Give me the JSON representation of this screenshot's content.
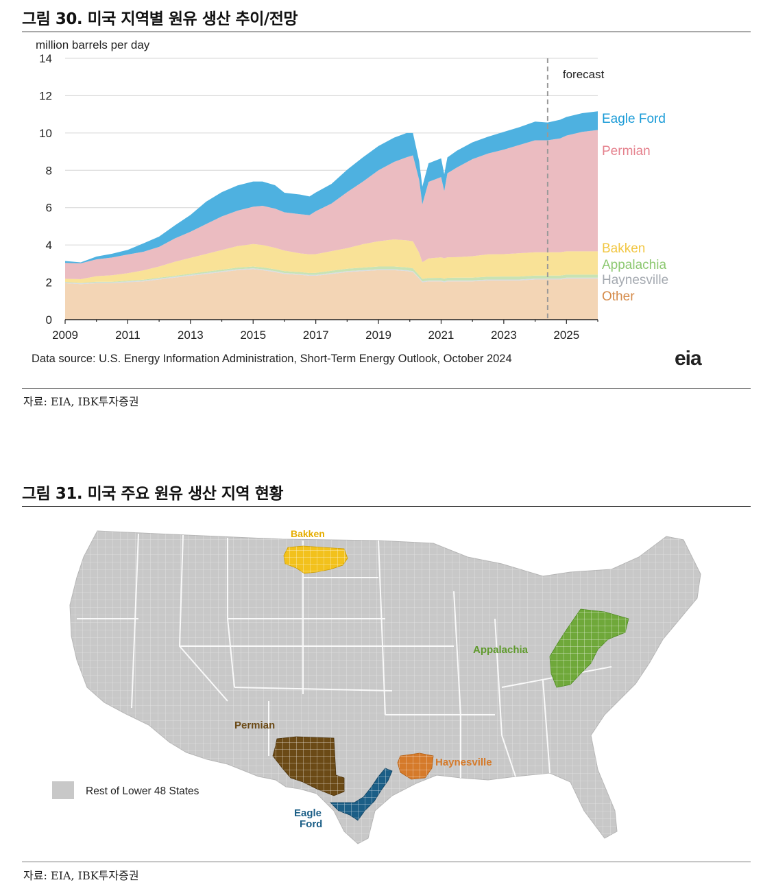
{
  "figure1": {
    "title": "그림 30. 미국 지역별 원유 생산 추이/전망",
    "source": "자료: EIA, IBK투자증권"
  },
  "figure2": {
    "title": "그림 31. 미국 주요 원유 생산 지역 현황",
    "source": "자료: EIA, IBK투자증권",
    "legend_label": "Rest of Lower 48 States",
    "regions": [
      {
        "name": "Bakken",
        "label": "Bakken",
        "color": "#f2c11c"
      },
      {
        "name": "Appalachia",
        "label": "Appalachia",
        "color": "#6fa83a"
      },
      {
        "name": "Permian",
        "label": "Permian",
        "color": "#6b4a16"
      },
      {
        "name": "Haynesville",
        "label": "Haynesville",
        "color": "#d57a2a"
      },
      {
        "name": "Eagle Ford",
        "label": "Eagle\nFord",
        "label_lines": [
          "Eagle",
          "Ford"
        ],
        "color": "#1b5e86"
      }
    ],
    "map_base_color": "#c8c8c8"
  },
  "chart_data": {
    "type": "area",
    "stacked": true,
    "ylabel": "million barrels per day",
    "ylim": [
      0,
      14
    ],
    "yticks": [
      0,
      2,
      4,
      6,
      8,
      10,
      12,
      14
    ],
    "xlim": [
      2009.0,
      2026.0
    ],
    "xticks": [
      "2009",
      "2011",
      "2013",
      "2015",
      "2017",
      "2019",
      "2021",
      "2023",
      "2025"
    ],
    "forecast_start": 2024.4,
    "forecast_label": "forecast",
    "data_source": "Data source: U.S. Energy Information Administration, Short-Term Energy Outlook, October 2024",
    "logo": "eia",
    "grid": true,
    "legend_position": "right",
    "x": [
      2009.0,
      2009.5,
      2010.0,
      2010.5,
      2011.0,
      2011.5,
      2012.0,
      2012.5,
      2013.0,
      2013.5,
      2014.0,
      2014.5,
      2015.0,
      2015.3,
      2015.7,
      2016.0,
      2016.5,
      2016.8,
      2017.0,
      2017.5,
      2018.0,
      2018.5,
      2019.0,
      2019.5,
      2019.9,
      2020.1,
      2020.3,
      2020.4,
      2020.6,
      2021.0,
      2021.1,
      2021.2,
      2021.5,
      2022.0,
      2022.5,
      2023.0,
      2023.5,
      2024.0,
      2024.4,
      2024.8,
      2025.0,
      2025.5,
      2026.0
    ],
    "series": [
      {
        "name": "Other",
        "color": "#f3d5b5",
        "label_color": "#d58b4a",
        "values": [
          1.95,
          1.9,
          1.95,
          1.95,
          2.0,
          2.05,
          2.15,
          2.25,
          2.35,
          2.45,
          2.55,
          2.65,
          2.7,
          2.65,
          2.55,
          2.45,
          2.4,
          2.35,
          2.35,
          2.45,
          2.55,
          2.6,
          2.65,
          2.65,
          2.6,
          2.55,
          2.2,
          2.0,
          2.05,
          2.05,
          2.0,
          2.05,
          2.05,
          2.05,
          2.1,
          2.1,
          2.1,
          2.15,
          2.15,
          2.15,
          2.2,
          2.2,
          2.2
        ]
      },
      {
        "name": "Haynesville",
        "color": "#d8dde2",
        "label_color": "#a4a9b0",
        "values": [
          0.05,
          0.05,
          0.05,
          0.05,
          0.05,
          0.05,
          0.05,
          0.05,
          0.05,
          0.05,
          0.05,
          0.05,
          0.05,
          0.05,
          0.05,
          0.05,
          0.05,
          0.05,
          0.05,
          0.05,
          0.05,
          0.05,
          0.05,
          0.05,
          0.05,
          0.05,
          0.05,
          0.05,
          0.05,
          0.05,
          0.05,
          0.05,
          0.05,
          0.05,
          0.05,
          0.05,
          0.05,
          0.05,
          0.05,
          0.05,
          0.05,
          0.05,
          0.05
        ]
      },
      {
        "name": "Appalachia",
        "color": "#c8e3b4",
        "label_color": "#8cc870",
        "values": [
          0.02,
          0.02,
          0.03,
          0.03,
          0.04,
          0.04,
          0.05,
          0.05,
          0.06,
          0.07,
          0.08,
          0.09,
          0.1,
          0.1,
          0.1,
          0.1,
          0.1,
          0.1,
          0.11,
          0.12,
          0.13,
          0.14,
          0.15,
          0.15,
          0.15,
          0.15,
          0.13,
          0.13,
          0.13,
          0.14,
          0.14,
          0.14,
          0.15,
          0.15,
          0.15,
          0.16,
          0.16,
          0.16,
          0.16,
          0.16,
          0.16,
          0.16,
          0.16
        ]
      },
      {
        "name": "Bakken",
        "color": "#f9e297",
        "label_color": "#f2c744",
        "values": [
          0.17,
          0.2,
          0.3,
          0.35,
          0.4,
          0.5,
          0.6,
          0.75,
          0.85,
          0.95,
          1.05,
          1.15,
          1.2,
          1.2,
          1.15,
          1.1,
          1.0,
          1.0,
          1.0,
          1.05,
          1.1,
          1.25,
          1.35,
          1.45,
          1.45,
          1.45,
          1.2,
          0.9,
          1.05,
          1.1,
          1.1,
          1.1,
          1.1,
          1.15,
          1.2,
          1.2,
          1.25,
          1.25,
          1.25,
          1.25,
          1.25,
          1.25,
          1.25
        ]
      },
      {
        "name": "Permian",
        "color": "#ebbcc1",
        "label_color": "#e5828e",
        "values": [
          0.85,
          0.85,
          0.9,
          0.95,
          1.0,
          1.0,
          1.05,
          1.25,
          1.4,
          1.6,
          1.8,
          1.9,
          2.0,
          2.1,
          2.1,
          2.05,
          2.1,
          2.1,
          2.3,
          2.55,
          3.0,
          3.35,
          3.8,
          4.15,
          4.45,
          4.6,
          3.9,
          3.1,
          4.1,
          4.3,
          3.6,
          4.5,
          4.8,
          5.2,
          5.4,
          5.6,
          5.8,
          6.0,
          6.0,
          6.1,
          6.2,
          6.4,
          6.5
        ]
      },
      {
        "name": "Eagle Ford",
        "color": "#4eb1e0",
        "label_color": "#1a9bd7",
        "values": [
          0.1,
          0.05,
          0.15,
          0.2,
          0.25,
          0.45,
          0.55,
          0.7,
          0.9,
          1.2,
          1.3,
          1.35,
          1.35,
          1.3,
          1.25,
          1.05,
          1.05,
          1.0,
          1.0,
          1.05,
          1.2,
          1.3,
          1.3,
          1.3,
          1.3,
          1.2,
          1.0,
          0.95,
          1.0,
          1.0,
          0.9,
          0.85,
          0.9,
          0.9,
          0.9,
          0.95,
          0.95,
          1.0,
          0.95,
          1.0,
          1.0,
          1.0,
          1.0
        ]
      }
    ]
  }
}
